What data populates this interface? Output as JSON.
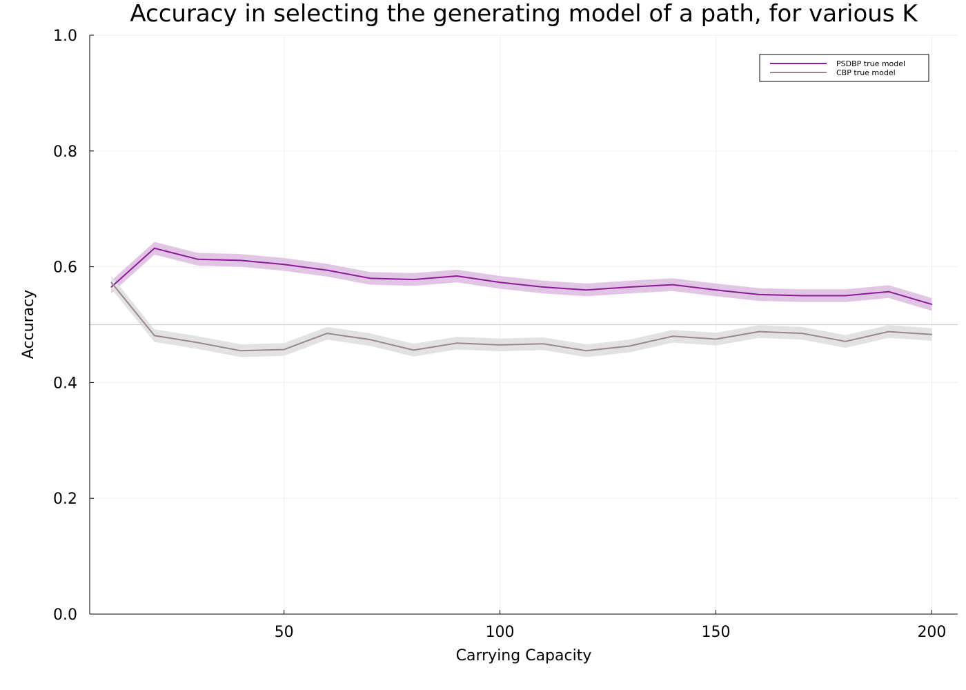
{
  "chart_data": {
    "type": "line",
    "title": "Accuracy in selecting the generating model of a path, for various K",
    "xlabel": "Carrying Capacity",
    "ylabel": "Accuracy",
    "xlim": [
      5,
      206
    ],
    "ylim": [
      0.0,
      1.0
    ],
    "xticks": [
      50,
      100,
      150,
      200
    ],
    "xtick_labels": [
      "50",
      "100",
      "150",
      "200"
    ],
    "yticks": [
      0.0,
      0.2,
      0.4,
      0.6,
      0.8,
      1.0
    ],
    "ytick_labels": [
      "0.0",
      "0.2",
      "0.4",
      "0.6",
      "0.8",
      "1.0"
    ],
    "grid": true,
    "legend_position": "top-right",
    "reference_line_y": 0.5,
    "x": [
      10,
      20,
      30,
      40,
      50,
      60,
      70,
      80,
      90,
      100,
      110,
      120,
      130,
      140,
      150,
      160,
      170,
      180,
      190,
      200
    ],
    "series": [
      {
        "name": "PSDBP true model",
        "color": "#8b1a96",
        "band_color": "#e2c4e4",
        "values": [
          0.565,
          0.632,
          0.613,
          0.611,
          0.604,
          0.594,
          0.58,
          0.578,
          0.584,
          0.573,
          0.565,
          0.56,
          0.565,
          0.569,
          0.56,
          0.552,
          0.55,
          0.55,
          0.557,
          0.535
        ],
        "band_halfwidth": 0.011
      },
      {
        "name": "CBP true model",
        "color": "#988592",
        "band_color": "#e3e2e3",
        "values": [
          0.573,
          0.481,
          0.469,
          0.455,
          0.457,
          0.485,
          0.474,
          0.456,
          0.468,
          0.465,
          0.467,
          0.455,
          0.463,
          0.48,
          0.475,
          0.488,
          0.485,
          0.471,
          0.488,
          0.483
        ],
        "band_halfwidth": 0.011
      }
    ]
  }
}
